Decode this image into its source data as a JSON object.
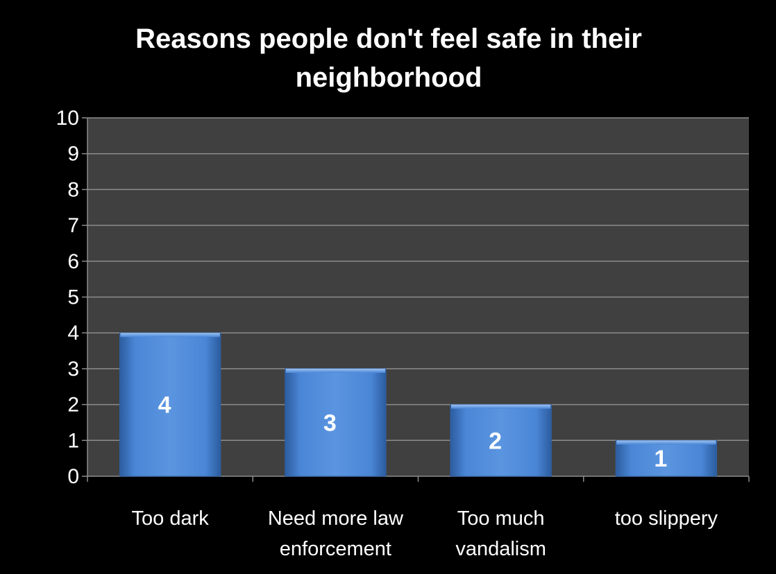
{
  "chart_data": {
    "type": "bar",
    "title": "Reasons people don't feel safe in their neighborhood",
    "categories": [
      "Too dark",
      "Need more law enforcement",
      "Too much vandalism",
      "too slippery"
    ],
    "category_lines": [
      [
        "Too dark"
      ],
      [
        "Need more law",
        "enforcement"
      ],
      [
        "Too much",
        "vandalism"
      ],
      [
        "too slippery"
      ]
    ],
    "values": [
      4,
      3,
      2,
      1
    ],
    "data_labels": [
      "4",
      "3",
      "2",
      "1"
    ],
    "ylim": [
      0,
      10
    ],
    "yticks": [
      "0",
      "1",
      "2",
      "3",
      "4",
      "5",
      "6",
      "7",
      "8",
      "9",
      "10"
    ],
    "xlabel": "",
    "ylabel": "",
    "grid": true,
    "legend": "none",
    "colors": {
      "background": "#000000",
      "plot_area": "#404040",
      "gridline": "#8c8c8c",
      "bar": "#4a86d6",
      "bar_dark": "#2f62a8",
      "text": "#ffffff"
    }
  }
}
